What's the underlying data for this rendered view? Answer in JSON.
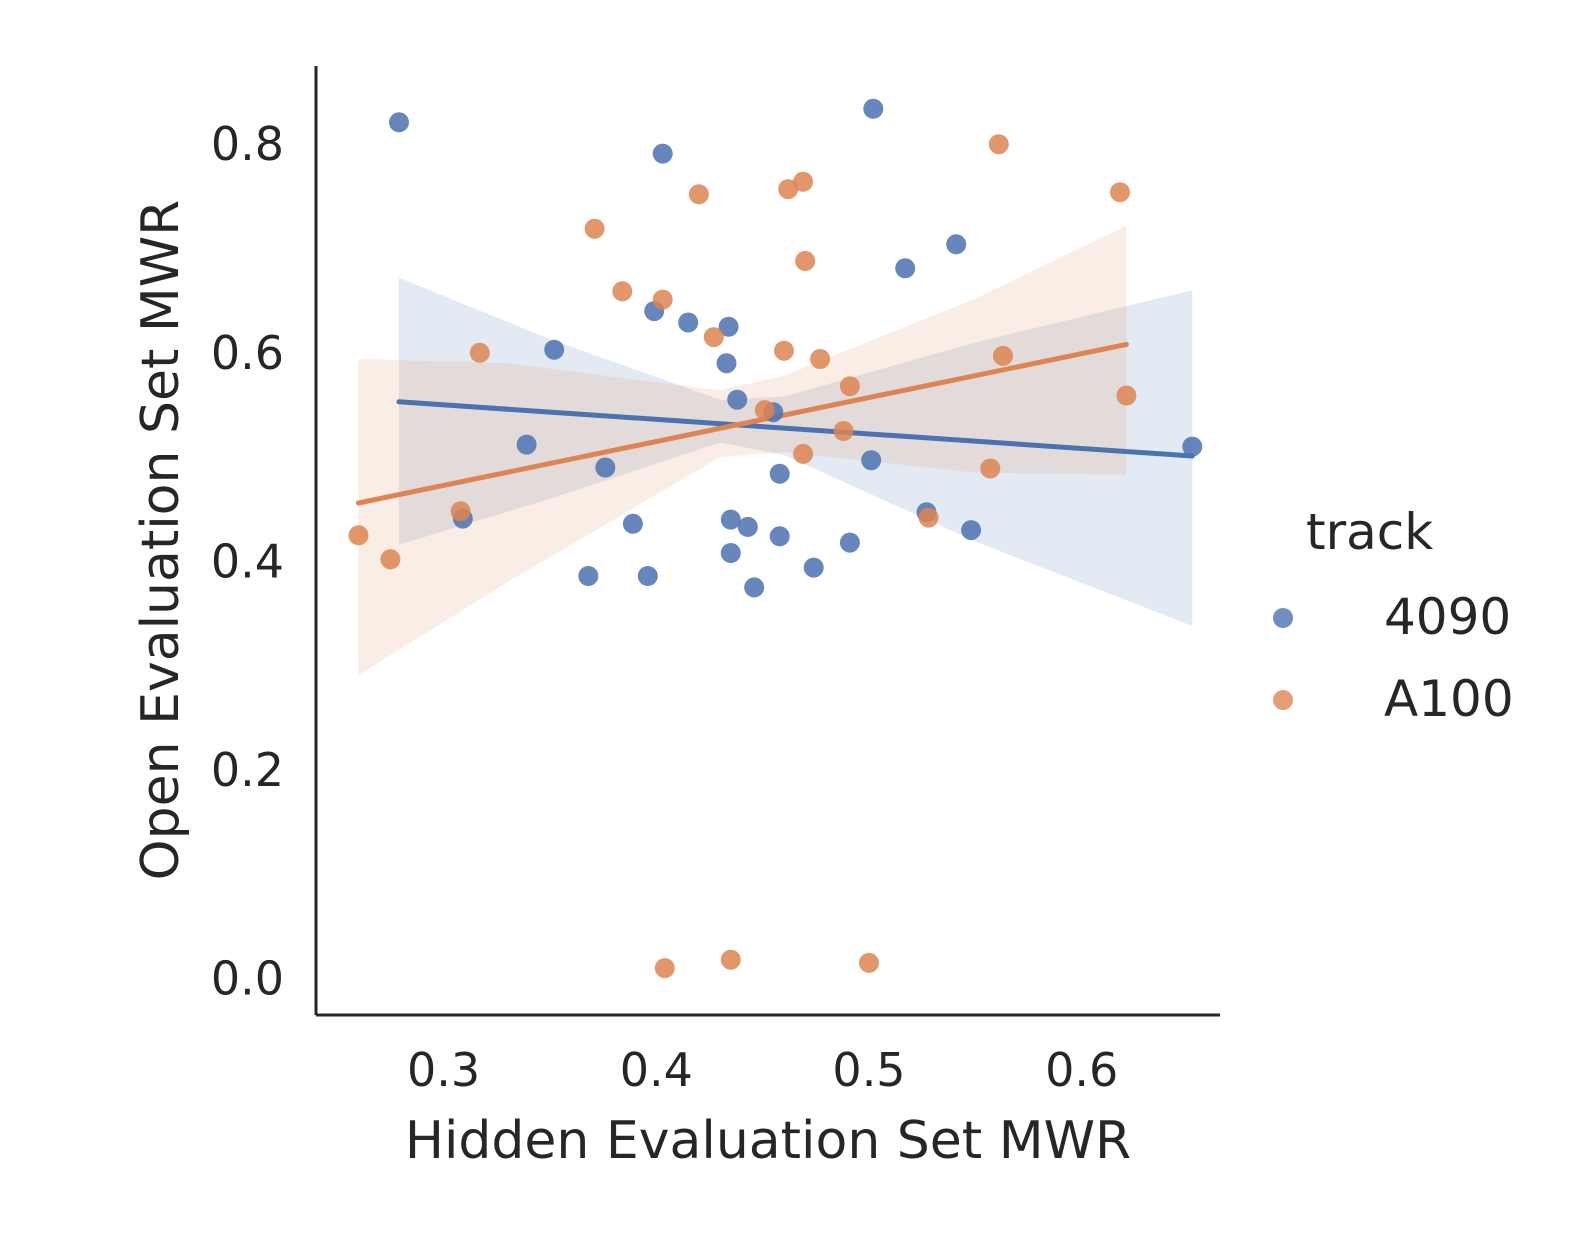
{
  "chart_data": {
    "type": "scatter",
    "title": "",
    "xlabel": "Hidden Evaluation Set MWR",
    "ylabel": "Open Evaluation Set MWR",
    "xlim": [
      0.24,
      0.665
    ],
    "ylim": [
      -0.035,
      0.875
    ],
    "xticks": [
      0.3,
      0.4,
      0.5,
      0.6
    ],
    "xtick_labels": [
      "0.3",
      "0.4",
      "0.5",
      "0.6"
    ],
    "yticks": [
      0.0,
      0.2,
      0.4,
      0.6,
      0.8
    ],
    "ytick_labels": [
      "0.0",
      "0.2",
      "0.4",
      "0.6",
      "0.8"
    ],
    "grid": false,
    "legend": {
      "title": "track",
      "placement": "right"
    },
    "series": [
      {
        "name": "4090",
        "color": "#4C72B0",
        "points": [
          {
            "x": 0.279,
            "y": 0.821
          },
          {
            "x": 0.502,
            "y": 0.834
          },
          {
            "x": 0.403,
            "y": 0.791
          },
          {
            "x": 0.541,
            "y": 0.704
          },
          {
            "x": 0.517,
            "y": 0.681
          },
          {
            "x": 0.399,
            "y": 0.64
          },
          {
            "x": 0.415,
            "y": 0.629
          },
          {
            "x": 0.434,
            "y": 0.625
          },
          {
            "x": 0.352,
            "y": 0.603
          },
          {
            "x": 0.433,
            "y": 0.59
          },
          {
            "x": 0.438,
            "y": 0.555
          },
          {
            "x": 0.455,
            "y": 0.543
          },
          {
            "x": 0.339,
            "y": 0.512
          },
          {
            "x": 0.652,
            "y": 0.51
          },
          {
            "x": 0.501,
            "y": 0.497
          },
          {
            "x": 0.376,
            "y": 0.49
          },
          {
            "x": 0.458,
            "y": 0.484
          },
          {
            "x": 0.309,
            "y": 0.441
          },
          {
            "x": 0.527,
            "y": 0.447
          },
          {
            "x": 0.389,
            "y": 0.436
          },
          {
            "x": 0.435,
            "y": 0.44
          },
          {
            "x": 0.443,
            "y": 0.433
          },
          {
            "x": 0.548,
            "y": 0.43
          },
          {
            "x": 0.458,
            "y": 0.424
          },
          {
            "x": 0.491,
            "y": 0.418
          },
          {
            "x": 0.435,
            "y": 0.408
          },
          {
            "x": 0.474,
            "y": 0.394
          },
          {
            "x": 0.368,
            "y": 0.386
          },
          {
            "x": 0.396,
            "y": 0.386
          },
          {
            "x": 0.446,
            "y": 0.375
          }
        ],
        "fit_line": {
          "x": [
            0.279,
            0.652
          ],
          "y": [
            0.553,
            0.501
          ]
        },
        "ci_band": {
          "x": [
            0.279,
            0.35,
            0.43,
            0.46,
            0.55,
            0.652
          ],
          "upper": [
            0.672,
            0.613,
            0.555,
            0.558,
            0.61,
            0.66
          ],
          "lower": [
            0.416,
            0.46,
            0.514,
            0.502,
            0.419,
            0.338
          ]
        }
      },
      {
        "name": "A100",
        "color": "#DD8452",
        "points": [
          {
            "x": 0.561,
            "y": 0.8
          },
          {
            "x": 0.618,
            "y": 0.754
          },
          {
            "x": 0.42,
            "y": 0.752
          },
          {
            "x": 0.462,
            "y": 0.757
          },
          {
            "x": 0.469,
            "y": 0.764
          },
          {
            "x": 0.371,
            "y": 0.719
          },
          {
            "x": 0.47,
            "y": 0.688
          },
          {
            "x": 0.384,
            "y": 0.659
          },
          {
            "x": 0.403,
            "y": 0.651
          },
          {
            "x": 0.427,
            "y": 0.615
          },
          {
            "x": 0.317,
            "y": 0.6
          },
          {
            "x": 0.46,
            "y": 0.602
          },
          {
            "x": 0.477,
            "y": 0.594
          },
          {
            "x": 0.563,
            "y": 0.597
          },
          {
            "x": 0.491,
            "y": 0.568
          },
          {
            "x": 0.621,
            "y": 0.559
          },
          {
            "x": 0.451,
            "y": 0.545
          },
          {
            "x": 0.488,
            "y": 0.525
          },
          {
            "x": 0.469,
            "y": 0.503
          },
          {
            "x": 0.557,
            "y": 0.489
          },
          {
            "x": 0.308,
            "y": 0.448
          },
          {
            "x": 0.528,
            "y": 0.442
          },
          {
            "x": 0.26,
            "y": 0.425
          },
          {
            "x": 0.275,
            "y": 0.402
          },
          {
            "x": 0.404,
            "y": 0.01
          },
          {
            "x": 0.435,
            "y": 0.018
          },
          {
            "x": 0.5,
            "y": 0.015
          }
        ],
        "fit_line": {
          "x": [
            0.26,
            0.621
          ],
          "y": [
            0.456,
            0.608
          ]
        },
        "ci_band": {
          "x": [
            0.26,
            0.33,
            0.43,
            0.46,
            0.55,
            0.621
          ],
          "upper": [
            0.594,
            0.59,
            0.564,
            0.578,
            0.652,
            0.722
          ],
          "lower": [
            0.291,
            0.38,
            0.5,
            0.505,
            0.485,
            0.483
          ]
        }
      }
    ]
  }
}
